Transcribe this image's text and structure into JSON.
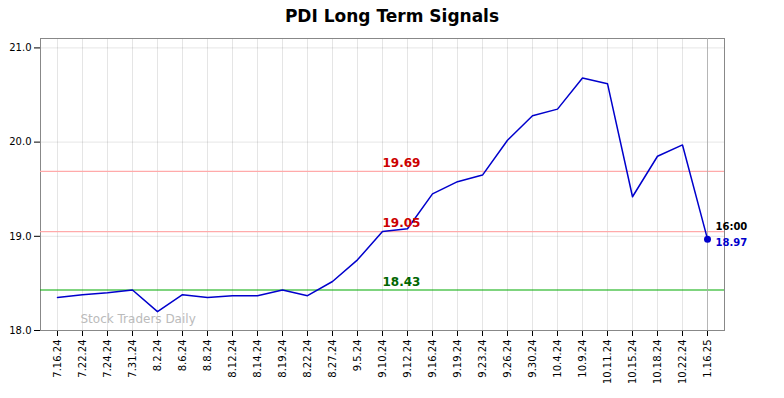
{
  "chart_data": {
    "type": "line",
    "title": "PDI Long Term Signals",
    "categories": [
      "7.16.24",
      "7.22.24",
      "7.24.24",
      "7.31.24",
      "8.2.24",
      "8.6.24",
      "8.8.24",
      "8.12.24",
      "8.14.24",
      "8.19.24",
      "8.22.24",
      "8.27.24",
      "9.5.24",
      "9.10.24",
      "9.12.24",
      "9.16.24",
      "9.19.24",
      "9.23.24",
      "9.26.24",
      "9.30.24",
      "10.4.24",
      "10.9.24",
      "10.11.24",
      "10.15.24",
      "10.18.24",
      "10.22.24",
      "1.16.25"
    ],
    "values": [
      18.35,
      18.38,
      18.4,
      18.43,
      18.2,
      18.38,
      18.35,
      18.37,
      18.37,
      18.43,
      18.37,
      18.52,
      18.75,
      19.05,
      19.08,
      19.45,
      19.58,
      19.65,
      20.02,
      20.28,
      20.35,
      20.68,
      20.62,
      19.42,
      19.85,
      19.97,
      18.97
    ],
    "color": "#0000cc",
    "ylim": [
      18.0,
      21.1
    ],
    "yticks": [
      18,
      19,
      20,
      21
    ],
    "grid": true,
    "reference_lines": [
      {
        "value": 19.69,
        "label": "19.69",
        "color": "#ffaaaa",
        "label_color": "#cc0000"
      },
      {
        "value": 19.05,
        "label": "19.05",
        "color": "#ffaaaa",
        "label_color": "#cc0000"
      },
      {
        "value": 18.43,
        "label": "18.43",
        "color": "#00aa00",
        "label_color": "#006600"
      }
    ],
    "last_point": {
      "marker": "o",
      "line_color": "#aaaaaa",
      "labels": [
        {
          "text": "16:00",
          "color": "#000000"
        },
        {
          "text": "18.97",
          "color": "#0000cc"
        }
      ]
    },
    "watermark": {
      "text": "Stock Traders Daily",
      "color": "#bbbbbb"
    }
  }
}
